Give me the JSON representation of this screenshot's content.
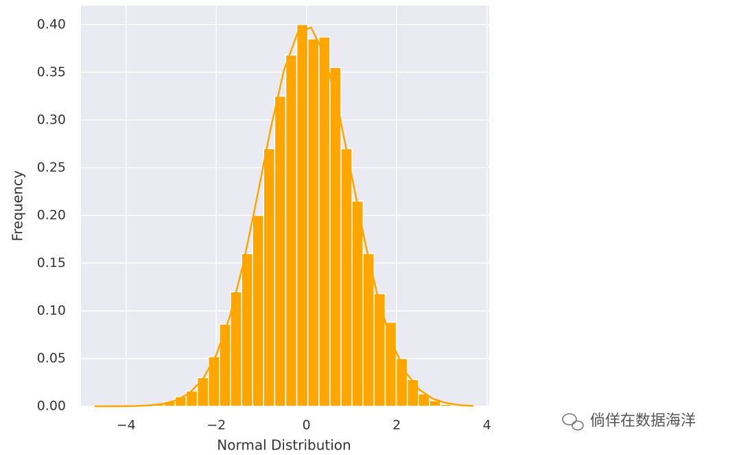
{
  "chart_data": {
    "type": "histogram",
    "x_label": "Normal Distribution",
    "y_label": "Frequency",
    "bins": [
      -3.4,
      -3.155,
      -2.91,
      -2.665,
      -2.42,
      -2.175,
      -1.93,
      -1.685,
      -1.44,
      -1.195,
      -0.95,
      -0.705,
      -0.46,
      -0.215,
      0.03,
      0.275,
      0.52,
      0.765,
      1.01,
      1.255,
      1.5,
      1.745,
      1.99,
      2.235,
      2.48,
      2.725,
      2.97,
      3.215
    ],
    "values": [
      0.002,
      0.005,
      0.01,
      0.016,
      0.03,
      0.052,
      0.086,
      0.12,
      0.16,
      0.2,
      0.27,
      0.325,
      0.368,
      0.4,
      0.385,
      0.387,
      0.355,
      0.27,
      0.215,
      0.16,
      0.118,
      0.088,
      0.05,
      0.028,
      0.013,
      0.006,
      0.002
    ],
    "color": "#ffa500",
    "kde": {
      "x": [
        -4.7,
        -4.4,
        -4.1,
        -3.8,
        -3.5,
        -3.2,
        -2.9,
        -2.6,
        -2.3,
        -2.0,
        -1.7,
        -1.4,
        -1.1,
        -0.8,
        -0.5,
        -0.2,
        0.1,
        0.4,
        0.7,
        1.0,
        1.3,
        1.6,
        1.9,
        2.2,
        2.5,
        2.8,
        3.1,
        3.4,
        3.7
      ],
      "values": [
        0.0,
        0.0,
        0.0001,
        0.0003,
        0.0009,
        0.0024,
        0.006,
        0.0136,
        0.0283,
        0.054,
        0.094,
        0.1497,
        0.2179,
        0.2897,
        0.3521,
        0.391,
        0.397,
        0.3683,
        0.3123,
        0.242,
        0.1714,
        0.1109,
        0.0656,
        0.0355,
        0.0175,
        0.0079,
        0.0033,
        0.0012,
        0.0004
      ],
      "color": "#ffa500"
    },
    "xlim": [
      -5.0,
      4.05
    ],
    "ylim": [
      0,
      0.42
    ],
    "xticks": [
      {
        "value": -4,
        "label": "−4"
      },
      {
        "value": -2,
        "label": "−2"
      },
      0,
      2,
      4
    ],
    "yticks": [
      {
        "value": 0,
        "label": "0.00"
      },
      0.05,
      {
        "value": 0.1,
        "label": "0.10"
      },
      0.15,
      {
        "value": 0.2,
        "label": "0.20"
      },
      0.25,
      {
        "value": 0.3,
        "label": "0.30"
      },
      0.35,
      {
        "value": 0.4,
        "label": "0.40"
      }
    ],
    "grid": true
  },
  "watermark": "倘佯在数据海洋"
}
